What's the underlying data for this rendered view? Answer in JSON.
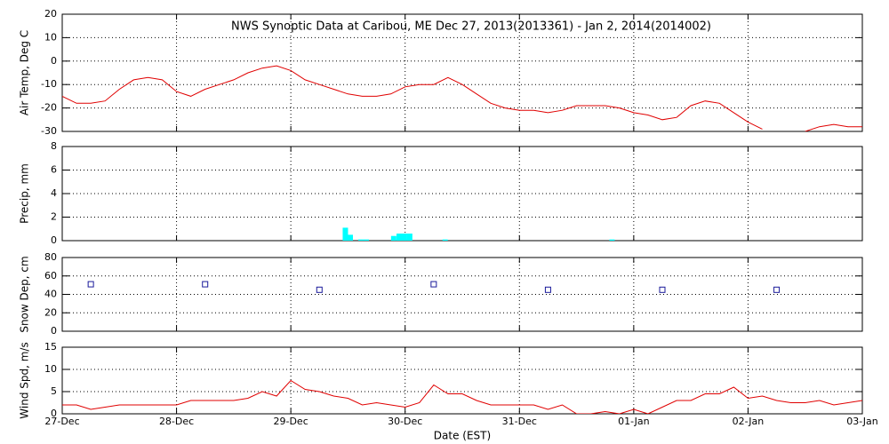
{
  "chart_data": [
    {
      "type": "line",
      "title": "NWS Synoptic Data at Caribou, ME   Dec 27, 2013(2013361) - Jan  2, 2014(2014002)",
      "ylabel": "Air Temp, Deg C",
      "grid": true,
      "xlim": [
        0,
        7
      ],
      "xticks": [
        0,
        1,
        2,
        3,
        4,
        5,
        6,
        7
      ],
      "ylim": [
        -30,
        20
      ],
      "yticks": [
        -30,
        -20,
        -10,
        0,
        10,
        20
      ],
      "x": [
        0,
        0.125,
        0.25,
        0.375,
        0.5,
        0.625,
        0.75,
        0.875,
        1,
        1.125,
        1.25,
        1.375,
        1.5,
        1.625,
        1.75,
        1.875,
        2,
        2.125,
        2.25,
        2.375,
        2.5,
        2.625,
        2.75,
        2.875,
        3,
        3.125,
        3.25,
        3.375,
        3.5,
        3.625,
        3.75,
        3.875,
        4,
        4.125,
        4.25,
        4.375,
        4.5,
        4.625,
        4.75,
        4.875,
        5,
        5.125,
        5.25,
        5.375,
        5.5,
        5.625,
        5.75,
        5.875,
        6,
        6.125,
        6.25,
        6.375,
        6.5,
        6.625,
        6.75,
        6.875,
        7
      ],
      "series": [
        {
          "color": "#e00000",
          "values": [
            -15,
            -18,
            -18,
            -17,
            -12,
            -8,
            -7,
            -8,
            -13,
            -15,
            -12,
            -10,
            -8,
            -5,
            -3,
            -2,
            -4,
            -8,
            -10,
            -12,
            -14,
            -15,
            -15,
            -14,
            -11,
            -10,
            -10,
            -7,
            -10,
            -14,
            -18,
            -20,
            -21,
            -21,
            -22,
            -21,
            -19,
            -19,
            -19,
            -20,
            -22,
            -23,
            -25,
            -24,
            -19,
            -17,
            -18,
            -22,
            -26,
            -29,
            null,
            null,
            -30,
            -28,
            -27,
            -28,
            -28
          ]
        }
      ]
    },
    {
      "type": "bar",
      "ylabel": "Precip, mm",
      "grid": true,
      "xlim": [
        0,
        7
      ],
      "xticks": [
        0,
        1,
        2,
        3,
        4,
        5,
        6,
        7
      ],
      "ylim": [
        0,
        8
      ],
      "yticks": [
        0,
        2,
        4,
        6,
        8
      ],
      "x": [
        2.477,
        2.52,
        2.613,
        2.66,
        2.9,
        2.948,
        2.994,
        3.04,
        3.35,
        4.81
      ],
      "series": [
        {
          "color": "#00ffff",
          "values": [
            1.1,
            0.5,
            0.1,
            0.1,
            0.4,
            0.6,
            0.6,
            0.6,
            0.1,
            0.1
          ]
        }
      ]
    },
    {
      "type": "scatter",
      "ylabel": "Snow Dep, cm",
      "grid": true,
      "xlim": [
        0,
        7
      ],
      "xticks": [
        0,
        1,
        2,
        3,
        4,
        5,
        6,
        7
      ],
      "ylim": [
        0,
        80
      ],
      "yticks": [
        0,
        20,
        40,
        60,
        80
      ],
      "x": [
        0.25,
        1.25,
        2.25,
        3.25,
        4.25,
        5.25,
        6.25
      ],
      "series": [
        {
          "color": "#1a1a9a",
          "values": [
            51,
            51,
            45,
            51,
            45,
            45,
            45
          ]
        }
      ]
    },
    {
      "type": "line",
      "ylabel": "Wind Spd, m/s",
      "xlabel": "Date (EST)",
      "grid": true,
      "xlim": [
        0,
        7
      ],
      "xticks": [
        {
          "value": 0,
          "label": "27-Dec"
        },
        {
          "value": 1,
          "label": "28-Dec"
        },
        {
          "value": 2,
          "label": "29-Dec"
        },
        {
          "value": 3,
          "label": "30-Dec"
        },
        {
          "value": 4,
          "label": "31-Dec"
        },
        {
          "value": 5,
          "label": "01-Jan"
        },
        {
          "value": 6,
          "label": "02-Jan"
        },
        {
          "value": 7,
          "label": "03-Jan"
        }
      ],
      "ylim": [
        0,
        15
      ],
      "yticks": [
        0,
        5,
        10,
        15
      ],
      "x": [
        0,
        0.125,
        0.25,
        0.375,
        0.5,
        0.625,
        0.75,
        0.875,
        1,
        1.125,
        1.25,
        1.375,
        1.5,
        1.625,
        1.75,
        1.875,
        2,
        2.125,
        2.25,
        2.375,
        2.5,
        2.625,
        2.75,
        2.875,
        3,
        3.125,
        3.25,
        3.375,
        3.5,
        3.625,
        3.75,
        3.875,
        4,
        4.125,
        4.25,
        4.375,
        4.5,
        4.625,
        4.75,
        4.875,
        5,
        5.125,
        5.25,
        5.375,
        5.5,
        5.625,
        5.75,
        5.875,
        6,
        6.125,
        6.25,
        6.375,
        6.5,
        6.625,
        6.75,
        6.875,
        7
      ],
      "series": [
        {
          "color": "#e00000",
          "values": [
            2,
            2,
            1,
            1.5,
            2,
            2,
            2,
            2,
            2,
            3,
            3,
            3,
            3,
            3.5,
            5,
            4,
            7.5,
            5.5,
            5,
            4,
            3.5,
            2,
            2.5,
            2,
            1.5,
            2.5,
            6.5,
            4.5,
            4.5,
            3,
            2,
            2,
            2,
            2,
            1,
            2,
            0,
            0,
            0.5,
            0,
            1,
            0,
            1.5,
            3,
            3,
            4.5,
            4.5,
            6,
            3.5,
            4,
            3,
            2.5,
            2.5,
            3,
            2,
            2.5,
            3
          ]
        }
      ]
    }
  ]
}
